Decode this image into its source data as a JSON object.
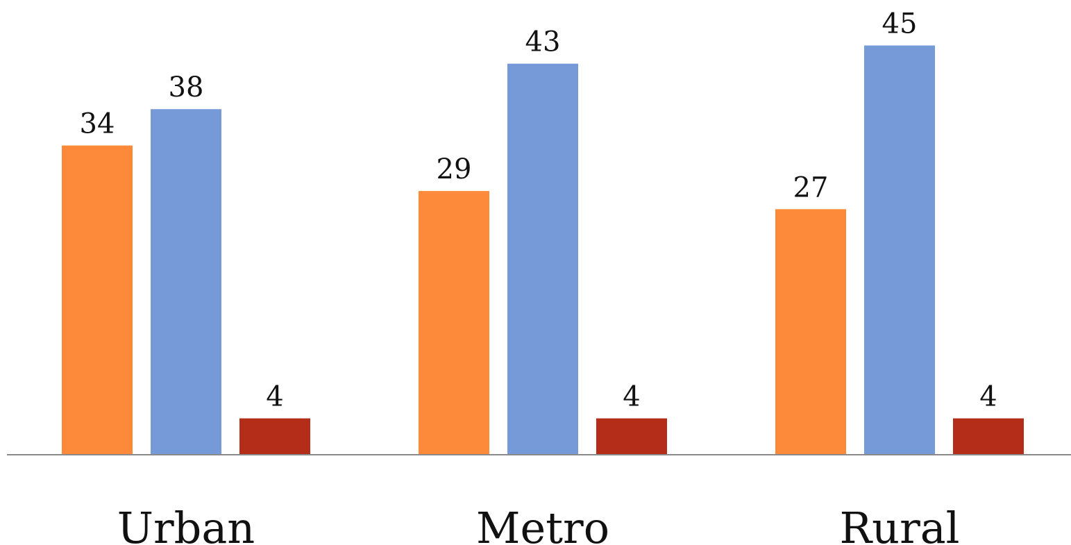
{
  "chart_data": {
    "type": "bar",
    "categories": [
      "Urban",
      "Metro",
      "Rural"
    ],
    "series": [
      {
        "values": [
          34,
          29,
          27
        ],
        "color": "#FD8A3A"
      },
      {
        "values": [
          38,
          43,
          45
        ],
        "color": "#7699D7"
      },
      {
        "values": [
          4,
          4,
          4
        ],
        "color": "#B42D19"
      }
    ],
    "ylim": [
      0,
      50
    ],
    "grid": false,
    "legend": "none",
    "axis_color": "#8A8A8A",
    "label_color": "#111111"
  }
}
